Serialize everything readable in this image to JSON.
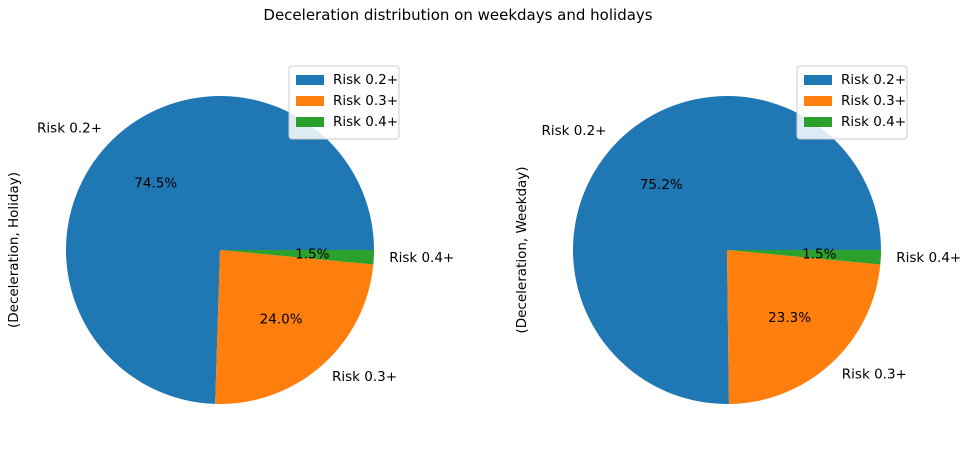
{
  "title": "Deceleration distribution on weekdays and holidays",
  "chart_data": [
    {
      "type": "pie",
      "ylabel": "(Deceleration, Holiday)",
      "categories": [
        "Risk 0.2+",
        "Risk 0.3+",
        "Risk 0.4+"
      ],
      "values": [
        74.5,
        24.0,
        1.5
      ],
      "value_labels": [
        "74.5%",
        "24.0%",
        "1.5%"
      ],
      "colors": [
        "#1f77b4",
        "#ff7f0e",
        "#2ca02c"
      ],
      "legend": {
        "position": "upper right",
        "entries": [
          "Risk 0.2+",
          "Risk 0.3+",
          "Risk 0.4+"
        ]
      }
    },
    {
      "type": "pie",
      "ylabel": "(Deceleration, Weekday)",
      "categories": [
        "Risk 0.2+",
        "Risk 0.3+",
        "Risk 0.4+"
      ],
      "values": [
        75.2,
        23.3,
        1.5
      ],
      "value_labels": [
        "75.2%",
        "23.3%",
        "1.5%"
      ],
      "colors": [
        "#1f77b4",
        "#ff7f0e",
        "#2ca02c"
      ],
      "legend": {
        "position": "upper right",
        "entries": [
          "Risk 0.2+",
          "Risk 0.3+",
          "Risk 0.4+"
        ]
      }
    }
  ]
}
